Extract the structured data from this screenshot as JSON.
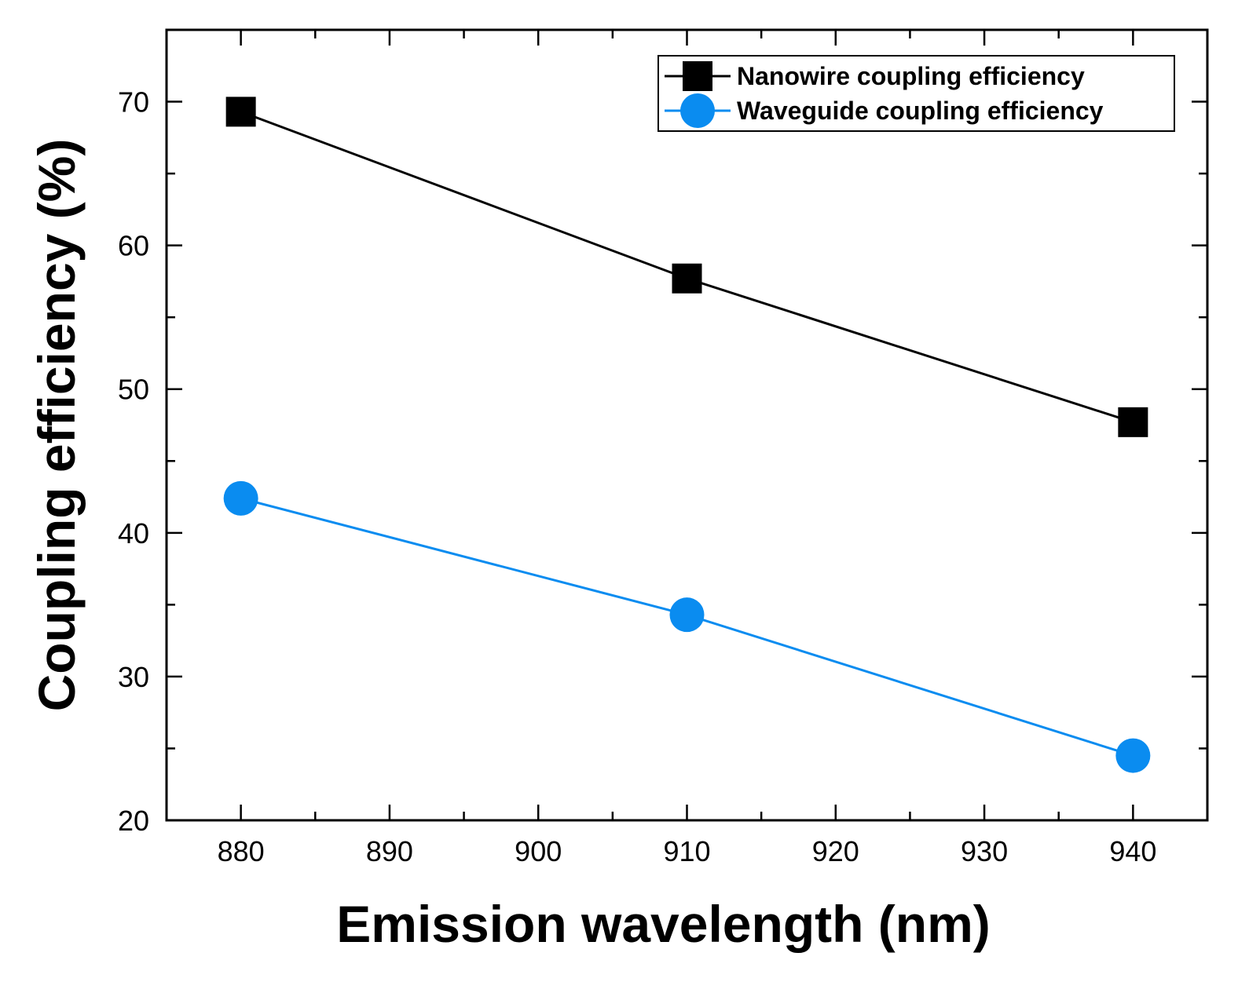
{
  "chart_data": {
    "type": "line",
    "xlabel": "Emission wavelength (nm)",
    "ylabel": "Coupling efficiency (%)",
    "xlim": [
      875,
      945
    ],
    "ylim": [
      20,
      75
    ],
    "xticks": [
      880,
      890,
      900,
      910,
      920,
      930,
      940
    ],
    "yticks": [
      20,
      30,
      40,
      50,
      60,
      70
    ],
    "x_minor_step": 5,
    "y_minor_step": 5,
    "grid": false,
    "legend_position": "top-right",
    "x": [
      880,
      910,
      940
    ],
    "series": [
      {
        "name": "Nanowire coupling efficiency",
        "values": [
          69.3,
          57.7,
          47.7
        ],
        "color": "#000000",
        "marker": "square"
      },
      {
        "name": "Waveguide coupling efficiency",
        "values": [
          42.4,
          34.3,
          24.5
        ],
        "color": "#0a8cf0",
        "marker": "circle"
      }
    ]
  }
}
